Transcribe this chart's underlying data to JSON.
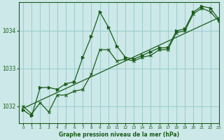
{
  "title": "Graphe pression niveau de la mer (hPa)",
  "background_color": "#cce8e8",
  "grid_color": "#99cccc",
  "line_color": "#1a5c1a",
  "xlim": [
    -0.5,
    23
  ],
  "ylim": [
    1031.55,
    1034.75
  ],
  "yticks": [
    1032,
    1033,
    1034
  ],
  "xticks": [
    0,
    1,
    2,
    3,
    4,
    5,
    6,
    7,
    8,
    9,
    10,
    11,
    12,
    13,
    14,
    15,
    16,
    17,
    18,
    19,
    20,
    21,
    22,
    23
  ],
  "series_main": {
    "x": [
      0,
      1,
      2,
      3,
      4,
      5,
      6,
      7,
      8,
      9,
      10,
      11,
      12,
      13,
      14,
      15,
      16,
      17,
      18,
      19,
      20,
      21,
      22,
      23
    ],
    "y": [
      1031.9,
      1031.75,
      1032.5,
      1032.5,
      1032.45,
      1032.6,
      1032.65,
      1033.3,
      1033.85,
      1034.5,
      1034.1,
      1033.6,
      1033.3,
      1033.25,
      1033.35,
      1033.45,
      1033.55,
      1033.55,
      1034.0,
      1034.05,
      1034.5,
      1034.65,
      1034.6,
      1034.3
    ]
  },
  "series2": {
    "x": [
      0,
      1,
      2,
      3,
      4,
      5,
      6,
      7,
      8,
      9,
      10,
      11,
      12,
      13,
      14,
      15,
      16,
      17,
      18,
      19,
      20,
      21,
      22,
      23
    ],
    "y": [
      1032.0,
      1031.8,
      1032.1,
      1031.85,
      1032.3,
      1032.3,
      1032.4,
      1032.45,
      1032.85,
      1033.5,
      1033.5,
      1033.2,
      1033.25,
      1033.2,
      1033.3,
      1033.35,
      1033.5,
      1033.5,
      1033.95,
      1034.0,
      1034.45,
      1034.6,
      1034.5,
      1034.25
    ]
  },
  "trend": {
    "x": [
      0,
      23
    ],
    "y": [
      1031.95,
      1034.35
    ]
  }
}
